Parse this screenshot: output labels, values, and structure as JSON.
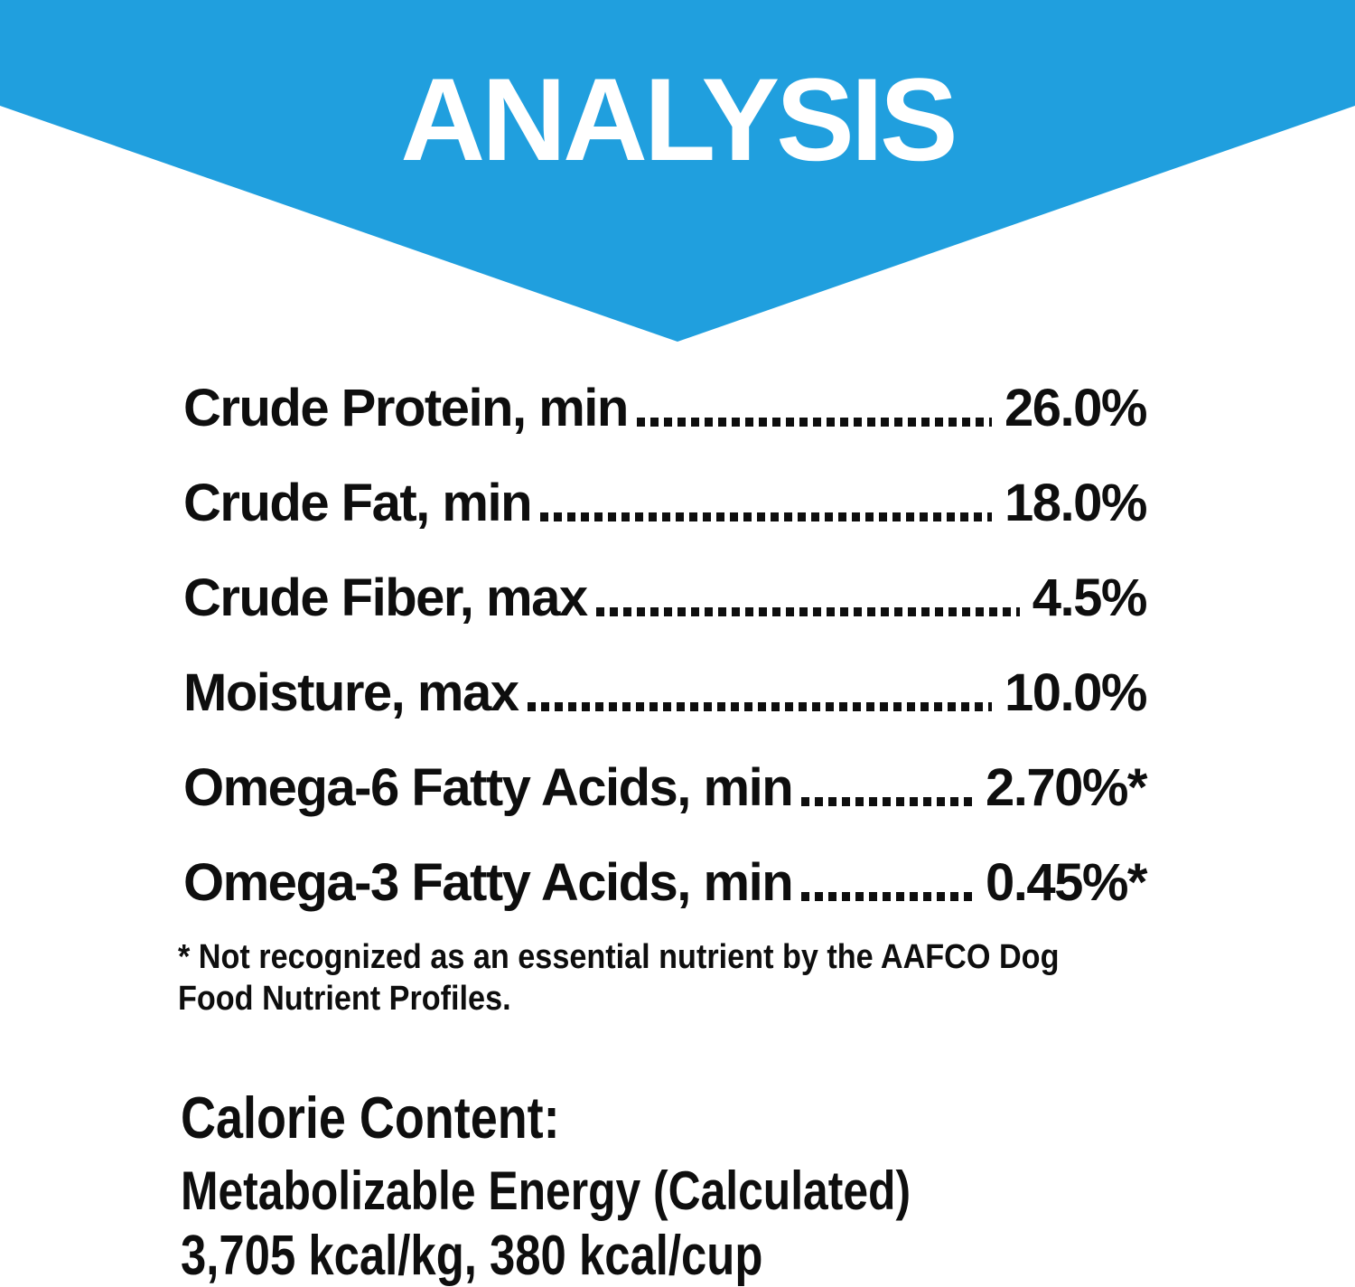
{
  "banner": {
    "title": "ANALYSIS",
    "background_color": "#209fde",
    "title_color": "#ffffff"
  },
  "analysis_rows": [
    {
      "label": "Crude Protein, min",
      "value": "26.0%"
    },
    {
      "label": "Crude Fat, min",
      "value": "18.0%"
    },
    {
      "label": "Crude Fiber, max",
      "value": "4.5%"
    },
    {
      "label": "Moisture, max",
      "value": "10.0%"
    },
    {
      "label": "Omega-6 Fatty Acids, min",
      "value": "2.70%*"
    },
    {
      "label": "Omega-3 Fatty Acids, min",
      "value": "0.45%*"
    }
  ],
  "footnote": {
    "line1": "* Not recognized as an essential nutrient by the AAFCO Dog",
    "line2": "Food Nutrient Profiles."
  },
  "calorie": {
    "heading": "Calorie Content:",
    "line1": "Metabolizable Energy (Calculated)",
    "line2": "3,705 kcal/kg, 380 kcal/cup"
  },
  "text_color": "#0e0e0e"
}
